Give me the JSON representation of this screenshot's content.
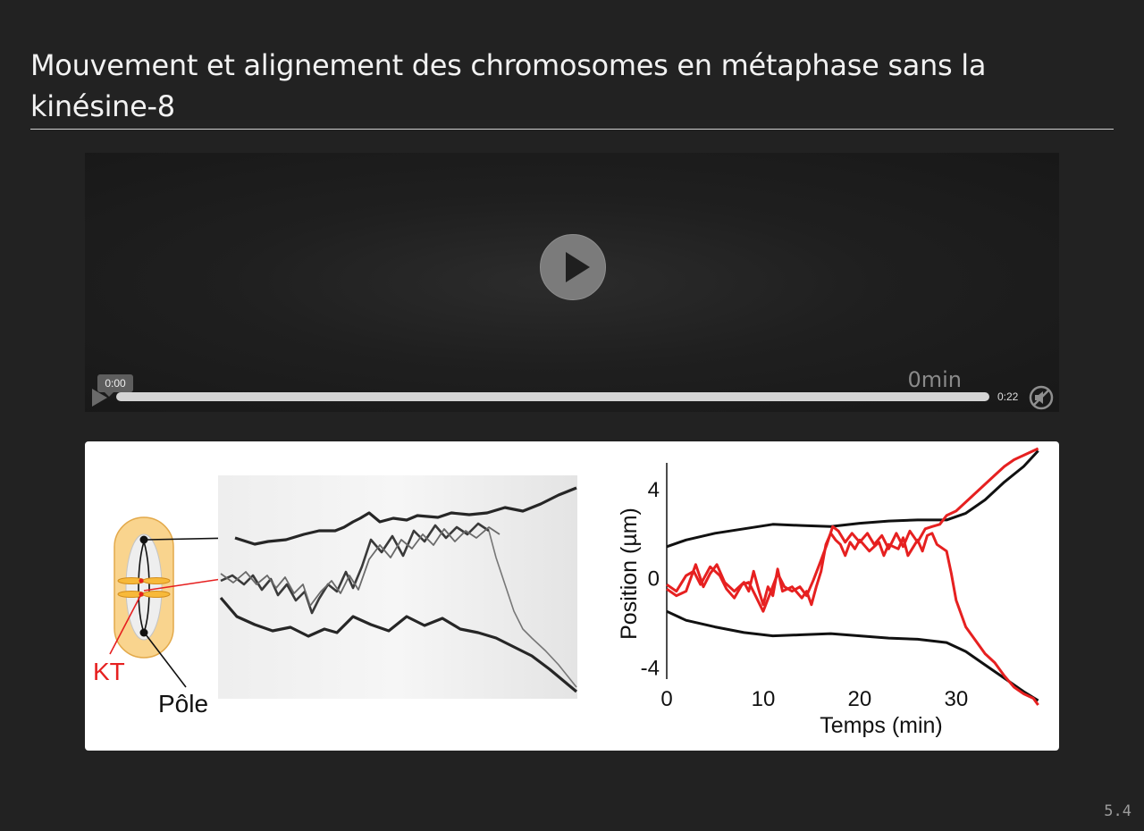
{
  "slide": {
    "title": "Mouvement et alignement des chromosomes en métaphase sans la kinésine-8",
    "page_number": "5.4"
  },
  "video": {
    "current_time": "0:00",
    "duration": "0:22",
    "overlay_text": "0min",
    "progress": 0
  },
  "figure": {
    "labels": {
      "kt": "KT",
      "pole": "Pôle"
    },
    "colors": {
      "kt": "#e62020",
      "pole": "#111111",
      "cell_fill": "#f9d48e",
      "cell_stroke": "#e3a94a"
    },
    "chart_data": {
      "type": "line",
      "xlabel": "Temps (min)",
      "ylabel": "Position (µm)",
      "xlim": [
        0,
        39
      ],
      "ylim": [
        -5.5,
        5.8
      ],
      "xticks": [
        0,
        10,
        20,
        30
      ],
      "yticks": [
        4,
        0,
        -4
      ],
      "grid": false,
      "series": [
        {
          "color": "#111111",
          "points": [
            [
              0,
              1.4
            ],
            [
              2,
              1.7
            ],
            [
              5,
              2.0
            ],
            [
              8,
              2.2
            ],
            [
              11,
              2.4
            ],
            [
              14,
              2.35
            ],
            [
              17,
              2.3
            ],
            [
              20,
              2.45
            ],
            [
              23,
              2.55
            ],
            [
              26,
              2.6
            ],
            [
              29,
              2.6
            ],
            [
              31,
              2.9
            ],
            [
              33,
              3.5
            ],
            [
              35,
              4.3
            ],
            [
              37,
              5.0
            ],
            [
              38.5,
              5.7
            ]
          ]
        },
        {
          "color": "#111111",
          "points": [
            [
              0,
              -1.5
            ],
            [
              2,
              -1.9
            ],
            [
              5,
              -2.2
            ],
            [
              8,
              -2.45
            ],
            [
              11,
              -2.6
            ],
            [
              14,
              -2.55
            ],
            [
              17,
              -2.5
            ],
            [
              20,
              -2.6
            ],
            [
              23,
              -2.7
            ],
            [
              26,
              -2.75
            ],
            [
              29,
              -2.9
            ],
            [
              31,
              -3.3
            ],
            [
              33,
              -3.9
            ],
            [
              35,
              -4.5
            ],
            [
              37,
              -5.1
            ],
            [
              38.5,
              -5.5
            ]
          ]
        },
        {
          "color": "#e62020",
          "points": [
            [
              0,
              -0.5
            ],
            [
              1,
              -0.8
            ],
            [
              2,
              -0.6
            ],
            [
              3,
              0.6
            ],
            [
              3.8,
              -0.4
            ],
            [
              4.5,
              0.2
            ],
            [
              5.2,
              0.6
            ],
            [
              6,
              -0.2
            ],
            [
              7,
              -0.6
            ],
            [
              8,
              -0.2
            ],
            [
              8.5,
              -0.6
            ],
            [
              9,
              0.3
            ],
            [
              9.5,
              -0.5
            ],
            [
              10,
              -1.2
            ],
            [
              10.5,
              -0.4
            ],
            [
              11,
              -0.8
            ],
            [
              11.5,
              0.4
            ],
            [
              12,
              -0.6
            ],
            [
              13,
              -0.4
            ],
            [
              14,
              -0.9
            ],
            [
              14.5,
              -0.6
            ],
            [
              15,
              -1.2
            ],
            [
              15.5,
              -0.4
            ],
            [
              16,
              0.3
            ],
            [
              16.5,
              1.5
            ],
            [
              17,
              2.0
            ],
            [
              17.5,
              1.7
            ],
            [
              18,
              1.5
            ],
            [
              18.5,
              1.0
            ],
            [
              19,
              1.6
            ],
            [
              19.5,
              1.3
            ],
            [
              20,
              1.7
            ],
            [
              21,
              1.2
            ],
            [
              22,
              1.6
            ],
            [
              22.5,
              1.0
            ],
            [
              23,
              1.5
            ],
            [
              24,
              1.3
            ],
            [
              24.5,
              1.8
            ],
            [
              25,
              1.0
            ],
            [
              26,
              1.7
            ],
            [
              26.5,
              1.2
            ],
            [
              27,
              1.9
            ],
            [
              27.5,
              2.0
            ],
            [
              28,
              1.5
            ],
            [
              29,
              1.2
            ],
            [
              29.5,
              0.2
            ],
            [
              30,
              -1.0
            ],
            [
              31,
              -2.2
            ],
            [
              32,
              -2.8
            ],
            [
              33,
              -3.4
            ],
            [
              34,
              -3.8
            ],
            [
              35,
              -4.4
            ],
            [
              36,
              -4.9
            ],
            [
              37,
              -5.2
            ],
            [
              38,
              -5.4
            ],
            [
              38.5,
              -5.7
            ]
          ]
        },
        {
          "color": "#e62020",
          "points": [
            [
              0,
              -0.3
            ],
            [
              1,
              -0.6
            ],
            [
              2,
              0.1
            ],
            [
              2.8,
              0.3
            ],
            [
              3.5,
              -0.3
            ],
            [
              4.5,
              0.5
            ],
            [
              5.5,
              0.1
            ],
            [
              6.2,
              -0.5
            ],
            [
              7,
              -0.9
            ],
            [
              7.8,
              -0.3
            ],
            [
              8.5,
              -0.2
            ],
            [
              9.2,
              -0.8
            ],
            [
              10,
              -1.5
            ],
            [
              10.8,
              -0.6
            ],
            [
              11.5,
              0.2
            ],
            [
              12.2,
              -0.4
            ],
            [
              13,
              -0.6
            ],
            [
              13.8,
              -0.4
            ],
            [
              14.5,
              -0.8
            ],
            [
              15.2,
              -0.1
            ],
            [
              16,
              0.8
            ],
            [
              16.6,
              1.5
            ],
            [
              17.2,
              2.3
            ],
            [
              17.8,
              2.1
            ],
            [
              18.5,
              1.6
            ],
            [
              19.2,
              2.0
            ],
            [
              20,
              1.6
            ],
            [
              20.8,
              2.0
            ],
            [
              21.5,
              1.5
            ],
            [
              22.3,
              1.9
            ],
            [
              23,
              1.3
            ],
            [
              23.8,
              2.0
            ],
            [
              24.5,
              1.4
            ],
            [
              25.2,
              2.1
            ],
            [
              26,
              1.6
            ],
            [
              26.8,
              2.2
            ],
            [
              27.5,
              2.3
            ],
            [
              28.3,
              2.4
            ],
            [
              29,
              2.8
            ],
            [
              30,
              3.0
            ],
            [
              31,
              3.4
            ],
            [
              32,
              3.8
            ],
            [
              33,
              4.2
            ],
            [
              34,
              4.6
            ],
            [
              35,
              5.0
            ],
            [
              36,
              5.3
            ],
            [
              37,
              5.5
            ],
            [
              38,
              5.7
            ],
            [
              38.5,
              5.8
            ]
          ]
        }
      ]
    }
  }
}
